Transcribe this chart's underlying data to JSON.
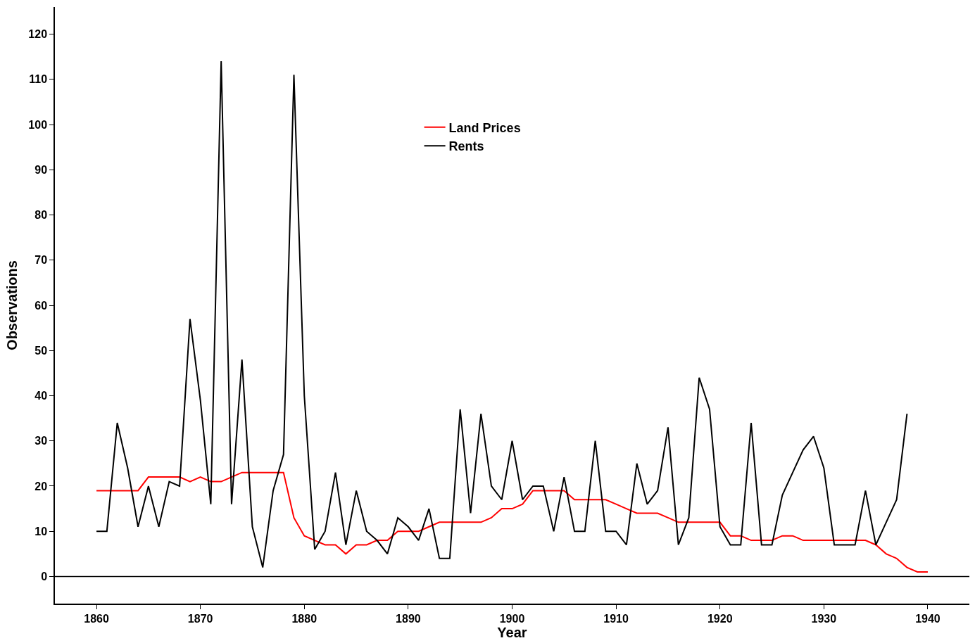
{
  "chart_data": {
    "type": "line",
    "xlabel": "Year",
    "ylabel": "Observations",
    "xlim": [
      1856,
      1944
    ],
    "xticks": [
      1860,
      1870,
      1880,
      1890,
      1900,
      1910,
      1920,
      1930,
      1940
    ],
    "ylim": [
      -6,
      126
    ],
    "yticks": [
      0,
      10,
      20,
      30,
      40,
      50,
      60,
      70,
      80,
      90,
      100,
      110,
      120
    ],
    "legend": "top",
    "marker": "none",
    "line_style": "solid",
    "ref_lines": [
      {
        "axis": "y",
        "value": 0,
        "label": null,
        "color": "#000000"
      }
    ],
    "series": [
      {
        "name": "Land Prices",
        "color": "#ff0000",
        "x": [
          1860,
          1861,
          1862,
          1863,
          1864,
          1865,
          1866,
          1867,
          1868,
          1869,
          1870,
          1871,
          1872,
          1873,
          1874,
          1875,
          1876,
          1877,
          1878,
          1879,
          1880,
          1881,
          1882,
          1883,
          1884,
          1885,
          1886,
          1887,
          1888,
          1889,
          1890,
          1891,
          1892,
          1893,
          1894,
          1895,
          1896,
          1897,
          1898,
          1899,
          1900,
          1901,
          1902,
          1903,
          1904,
          1905,
          1906,
          1907,
          1908,
          1909,
          1910,
          1911,
          1912,
          1913,
          1914,
          1915,
          1916,
          1917,
          1918,
          1919,
          1920,
          1921,
          1922,
          1923,
          1924,
          1925,
          1926,
          1927,
          1928,
          1929,
          1930,
          1931,
          1932,
          1933,
          1934,
          1935,
          1936,
          1937,
          1938,
          1939,
          1940
        ],
        "values": [
          19,
          19,
          19,
          19,
          19,
          22,
          22,
          22,
          22,
          21,
          22,
          21,
          21,
          22,
          23,
          23,
          23,
          23,
          23,
          13,
          9,
          8,
          7,
          7,
          5,
          7,
          7,
          8,
          8,
          10,
          10,
          10,
          11,
          12,
          12,
          12,
          12,
          12,
          13,
          15,
          15,
          16,
          19,
          19,
          19,
          19,
          17,
          17,
          17,
          17,
          16,
          15,
          14,
          14,
          14,
          13,
          12,
          12,
          12,
          12,
          12,
          9,
          9,
          8,
          8,
          8,
          9,
          9,
          8,
          8,
          8,
          8,
          8,
          8,
          8,
          7,
          5,
          4,
          2,
          1,
          1
        ]
      },
      {
        "name": "Rents",
        "color": "#000000",
        "x": [
          1860,
          1861,
          1862,
          1863,
          1864,
          1865,
          1866,
          1867,
          1868,
          1869,
          1870,
          1871,
          1872,
          1873,
          1874,
          1875,
          1876,
          1877,
          1878,
          1879,
          1880,
          1881,
          1882,
          1883,
          1884,
          1885,
          1886,
          1887,
          1888,
          1889,
          1890,
          1891,
          1892,
          1893,
          1894,
          1895,
          1896,
          1897,
          1898,
          1899,
          1900,
          1901,
          1902,
          1903,
          1904,
          1905,
          1906,
          1907,
          1908,
          1909,
          1910,
          1911,
          1912,
          1913,
          1914,
          1915,
          1916,
          1917,
          1918,
          1919,
          1920,
          1921,
          1922,
          1923,
          1924,
          1925,
          1926,
          1927,
          1928,
          1929,
          1930,
          1931,
          1932,
          1933,
          1934,
          1935,
          1936,
          1937,
          1938
        ],
        "values": [
          10,
          10,
          34,
          24,
          11,
          20,
          11,
          21,
          20,
          57,
          39,
          16,
          114,
          16,
          48,
          11,
          2,
          19,
          27,
          111,
          40,
          6,
          10,
          23,
          7,
          19,
          10,
          8,
          5,
          13,
          11,
          8,
          15,
          4,
          4,
          37,
          14,
          36,
          20,
          17,
          30,
          17,
          20,
          20,
          10,
          22,
          10,
          10,
          30,
          10,
          10,
          7,
          25,
          16,
          19,
          33,
          7,
          13,
          44,
          37,
          11,
          7,
          7,
          34,
          7,
          7,
          18,
          23,
          28,
          31,
          24,
          7,
          7,
          7,
          19,
          7,
          12,
          17,
          36
        ]
      }
    ]
  }
}
